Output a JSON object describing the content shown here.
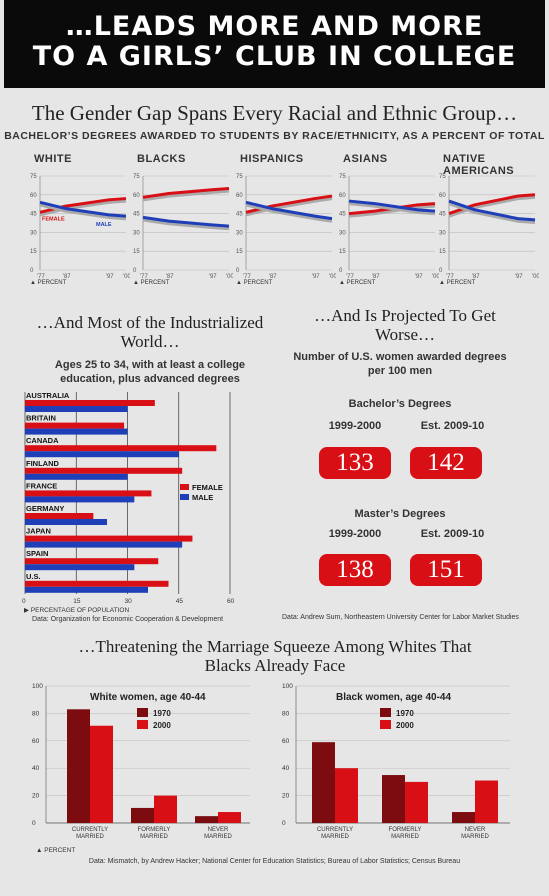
{
  "banner": {
    "line1": "…LEADS MORE AND MORE",
    "line2": "TO A GIRLS’ CLUB IN COLLEGE"
  },
  "section1": {
    "title": "The Gender Gap Spans Every Racial and Ethnic Group…",
    "subtitle": "BACHELOR’S DEGREES AWARDED TO STUDENTS BY RACE/ETHNICITY, AS A PERCENT OF TOTAL",
    "percent_label": "PERCENT",
    "female_label": "FEMALE",
    "male_label": "MALE"
  },
  "section2": {
    "title": "…And Most of the Industrialized World…",
    "subtitle": "Ages 25 to 34, with at least a college education, plus advanced degrees",
    "xaxis_label": "PERCENTAGE OF POPULATION",
    "source": "Data: Organization for Economic Cooperation & Development",
    "legend_female": "FEMALE",
    "legend_male": "MALE"
  },
  "section3": {
    "title": "…And Is Projected To Get Worse…",
    "subtitle": "Number of U.S. women awarded degrees per 100 men",
    "bachelors": {
      "label": "Bachelor’s Degrees",
      "col1": "1999-2000",
      "col2": "Est. 2009-10",
      "v1": "133",
      "v2": "142"
    },
    "masters": {
      "label": "Master’s Degrees",
      "col1": "1999-2000",
      "col2": "Est. 2009-10",
      "v1": "138",
      "v2": "151"
    },
    "source": "Data: Andrew Sum, Northeastern University Center for Labor Market Studies"
  },
  "section4": {
    "title": "…Threatening the Marriage Squeeze Among Whites That Blacks Already Face",
    "percent_label": "PERCENT",
    "source": "Data: Mismatch, by Andrew Hacker; National Center for Education Statistics; Bureau of Labor Statistics; Census Bureau"
  },
  "colors": {
    "female": "#d90f16",
    "male": "#1f3fb8",
    "c1970": "#7d0c10",
    "c2000": "#d90f16"
  },
  "chart_data": [
    {
      "type": "line",
      "title": "WHITE",
      "x": [
        "'77",
        "'87",
        "'97",
        "'00"
      ],
      "ylim": [
        0,
        75
      ],
      "yticks": [
        0,
        15,
        30,
        45,
        60,
        75
      ],
      "series": [
        {
          "name": "FEMALE",
          "values": [
            46,
            51,
            56,
            57
          ]
        },
        {
          "name": "MALE",
          "values": [
            54,
            49,
            44,
            43
          ]
        }
      ]
    },
    {
      "type": "line",
      "title": "BLACKS",
      "x": [
        "'77",
        "'87",
        "'97",
        "'00"
      ],
      "ylim": [
        0,
        75
      ],
      "yticks": [
        0,
        15,
        30,
        45,
        60,
        75
      ],
      "series": [
        {
          "values": [
            58,
            61,
            64,
            65
          ]
        },
        {
          "values": [
            42,
            39,
            36,
            35
          ]
        }
      ]
    },
    {
      "type": "line",
      "title": "HISPANICS",
      "x": [
        "'77",
        "'87",
        "'97",
        "'00"
      ],
      "ylim": [
        0,
        75
      ],
      "yticks": [
        0,
        15,
        30,
        45,
        60,
        75
      ],
      "series": [
        {
          "values": [
            46,
            51,
            57,
            59
          ]
        },
        {
          "values": [
            54,
            49,
            43,
            41
          ]
        }
      ]
    },
    {
      "type": "line",
      "title": "ASIANS",
      "x": [
        "'77",
        "'87",
        "'97",
        "'00"
      ],
      "ylim": [
        0,
        75
      ],
      "yticks": [
        0,
        15,
        30,
        45,
        60,
        75
      ],
      "series": [
        {
          "values": [
            45,
            47,
            52,
            53
          ]
        },
        {
          "values": [
            55,
            53,
            48,
            47
          ]
        }
      ]
    },
    {
      "type": "line",
      "title": "NATIVE AMERICANS",
      "x": [
        "'77",
        "'87",
        "'97",
        "'00"
      ],
      "ylim": [
        0,
        75
      ],
      "yticks": [
        0,
        15,
        30,
        45,
        60,
        75
      ],
      "series": [
        {
          "values": [
            45,
            52,
            59,
            60
          ]
        },
        {
          "values": [
            55,
            48,
            41,
            40
          ]
        }
      ]
    },
    {
      "type": "bar",
      "orientation": "horizontal",
      "categories": [
        "AUSTRALIA",
        "BRITAIN",
        "CANADA",
        "FINLAND",
        "FRANCE",
        "GERMANY",
        "JAPAN",
        "SPAIN",
        "U.S."
      ],
      "xlim": [
        0,
        60
      ],
      "xticks": [
        0,
        15,
        30,
        45,
        60
      ],
      "series": [
        {
          "name": "FEMALE",
          "values": [
            38,
            29,
            56,
            46,
            37,
            20,
            49,
            39,
            42
          ]
        },
        {
          "name": "MALE",
          "values": [
            30,
            30,
            45,
            30,
            32,
            24,
            46,
            32,
            36
          ]
        }
      ]
    },
    {
      "type": "bar",
      "title": "White women, age 40-44",
      "categories": [
        "CURRENTLY MARRIED",
        "FORMERLY MARRIED",
        "NEVER MARRIED"
      ],
      "ylim": [
        0,
        100
      ],
      "yticks": [
        0,
        20,
        40,
        60,
        80,
        100
      ],
      "series": [
        {
          "name": "1970",
          "values": [
            83,
            11,
            5
          ]
        },
        {
          "name": "2000",
          "values": [
            71,
            20,
            8
          ]
        }
      ]
    },
    {
      "type": "bar",
      "title": "Black women, age 40-44",
      "categories": [
        "CURRENTLY MARRIED",
        "FORMERLY MARRIED",
        "NEVER MARRIED"
      ],
      "ylim": [
        0,
        100
      ],
      "yticks": [
        0,
        20,
        40,
        60,
        80,
        100
      ],
      "series": [
        {
          "name": "1970",
          "values": [
            59,
            35,
            8
          ]
        },
        {
          "name": "2000",
          "values": [
            40,
            30,
            31
          ]
        }
      ]
    }
  ]
}
